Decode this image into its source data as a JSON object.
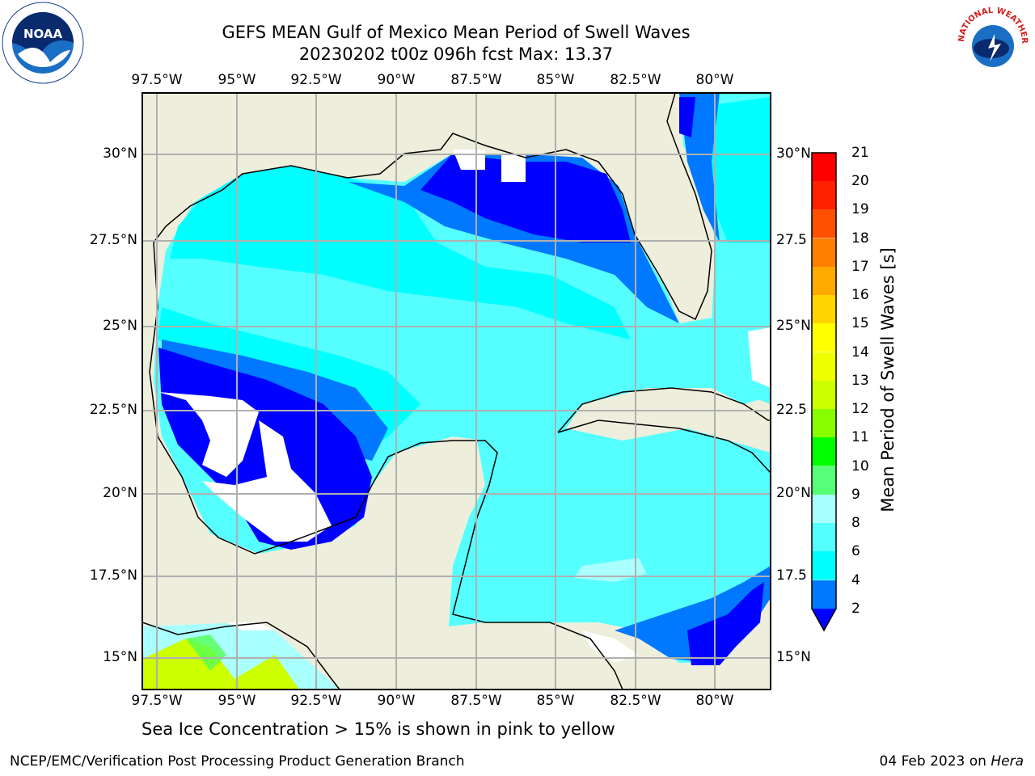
{
  "title_line1": "GEFS MEAN Gulf of Mexico Mean Period of Swell Waves",
  "title_line2": "20230202 t00z 096h fcst   Max: 13.37",
  "lon_labels": [
    "97.5°W",
    "95°W",
    "92.5°W",
    "90°W",
    "87.5°W",
    "85°W",
    "82.5°W",
    "80°W"
  ],
  "lat_labels_left": [
    "30°N",
    "27.5°N",
    "25°N",
    "22.5°N",
    "20°N",
    "17.5°N",
    "15°N"
  ],
  "lat_labels_right": [
    "30°N",
    "27.5",
    "25°N",
    "22.5",
    "20°N",
    "17.5",
    "15°N"
  ],
  "colorbar": {
    "label": "Mean Period of Swell Waves [s]",
    "ticks": [
      "21",
      "20",
      "19",
      "18",
      "17",
      "16",
      "15",
      "14",
      "13",
      "12",
      "11",
      "10",
      "9",
      "8",
      "6",
      "4",
      "2"
    ]
  },
  "note": "Sea Ice Concentration > 15% is shown in pink to yellow",
  "footer_left": "NCEP/EMC/Verification Post Processing Product Generation Branch",
  "footer_date": "04 Feb 2023 on ",
  "footer_host": "Hera",
  "logos": {
    "noaa_text": "NOAA",
    "nws_text": "NATIONAL WEATHER SERVICE"
  },
  "colors": {
    "land": "#eeeedc",
    "deep_blue": "#0000ff",
    "mid_blue": "#0078ff",
    "cyan": "#00ffff",
    "light_cyan": "#55ffff",
    "pale_cyan": "#aaffff",
    "grid": "#b0b0b0"
  }
}
